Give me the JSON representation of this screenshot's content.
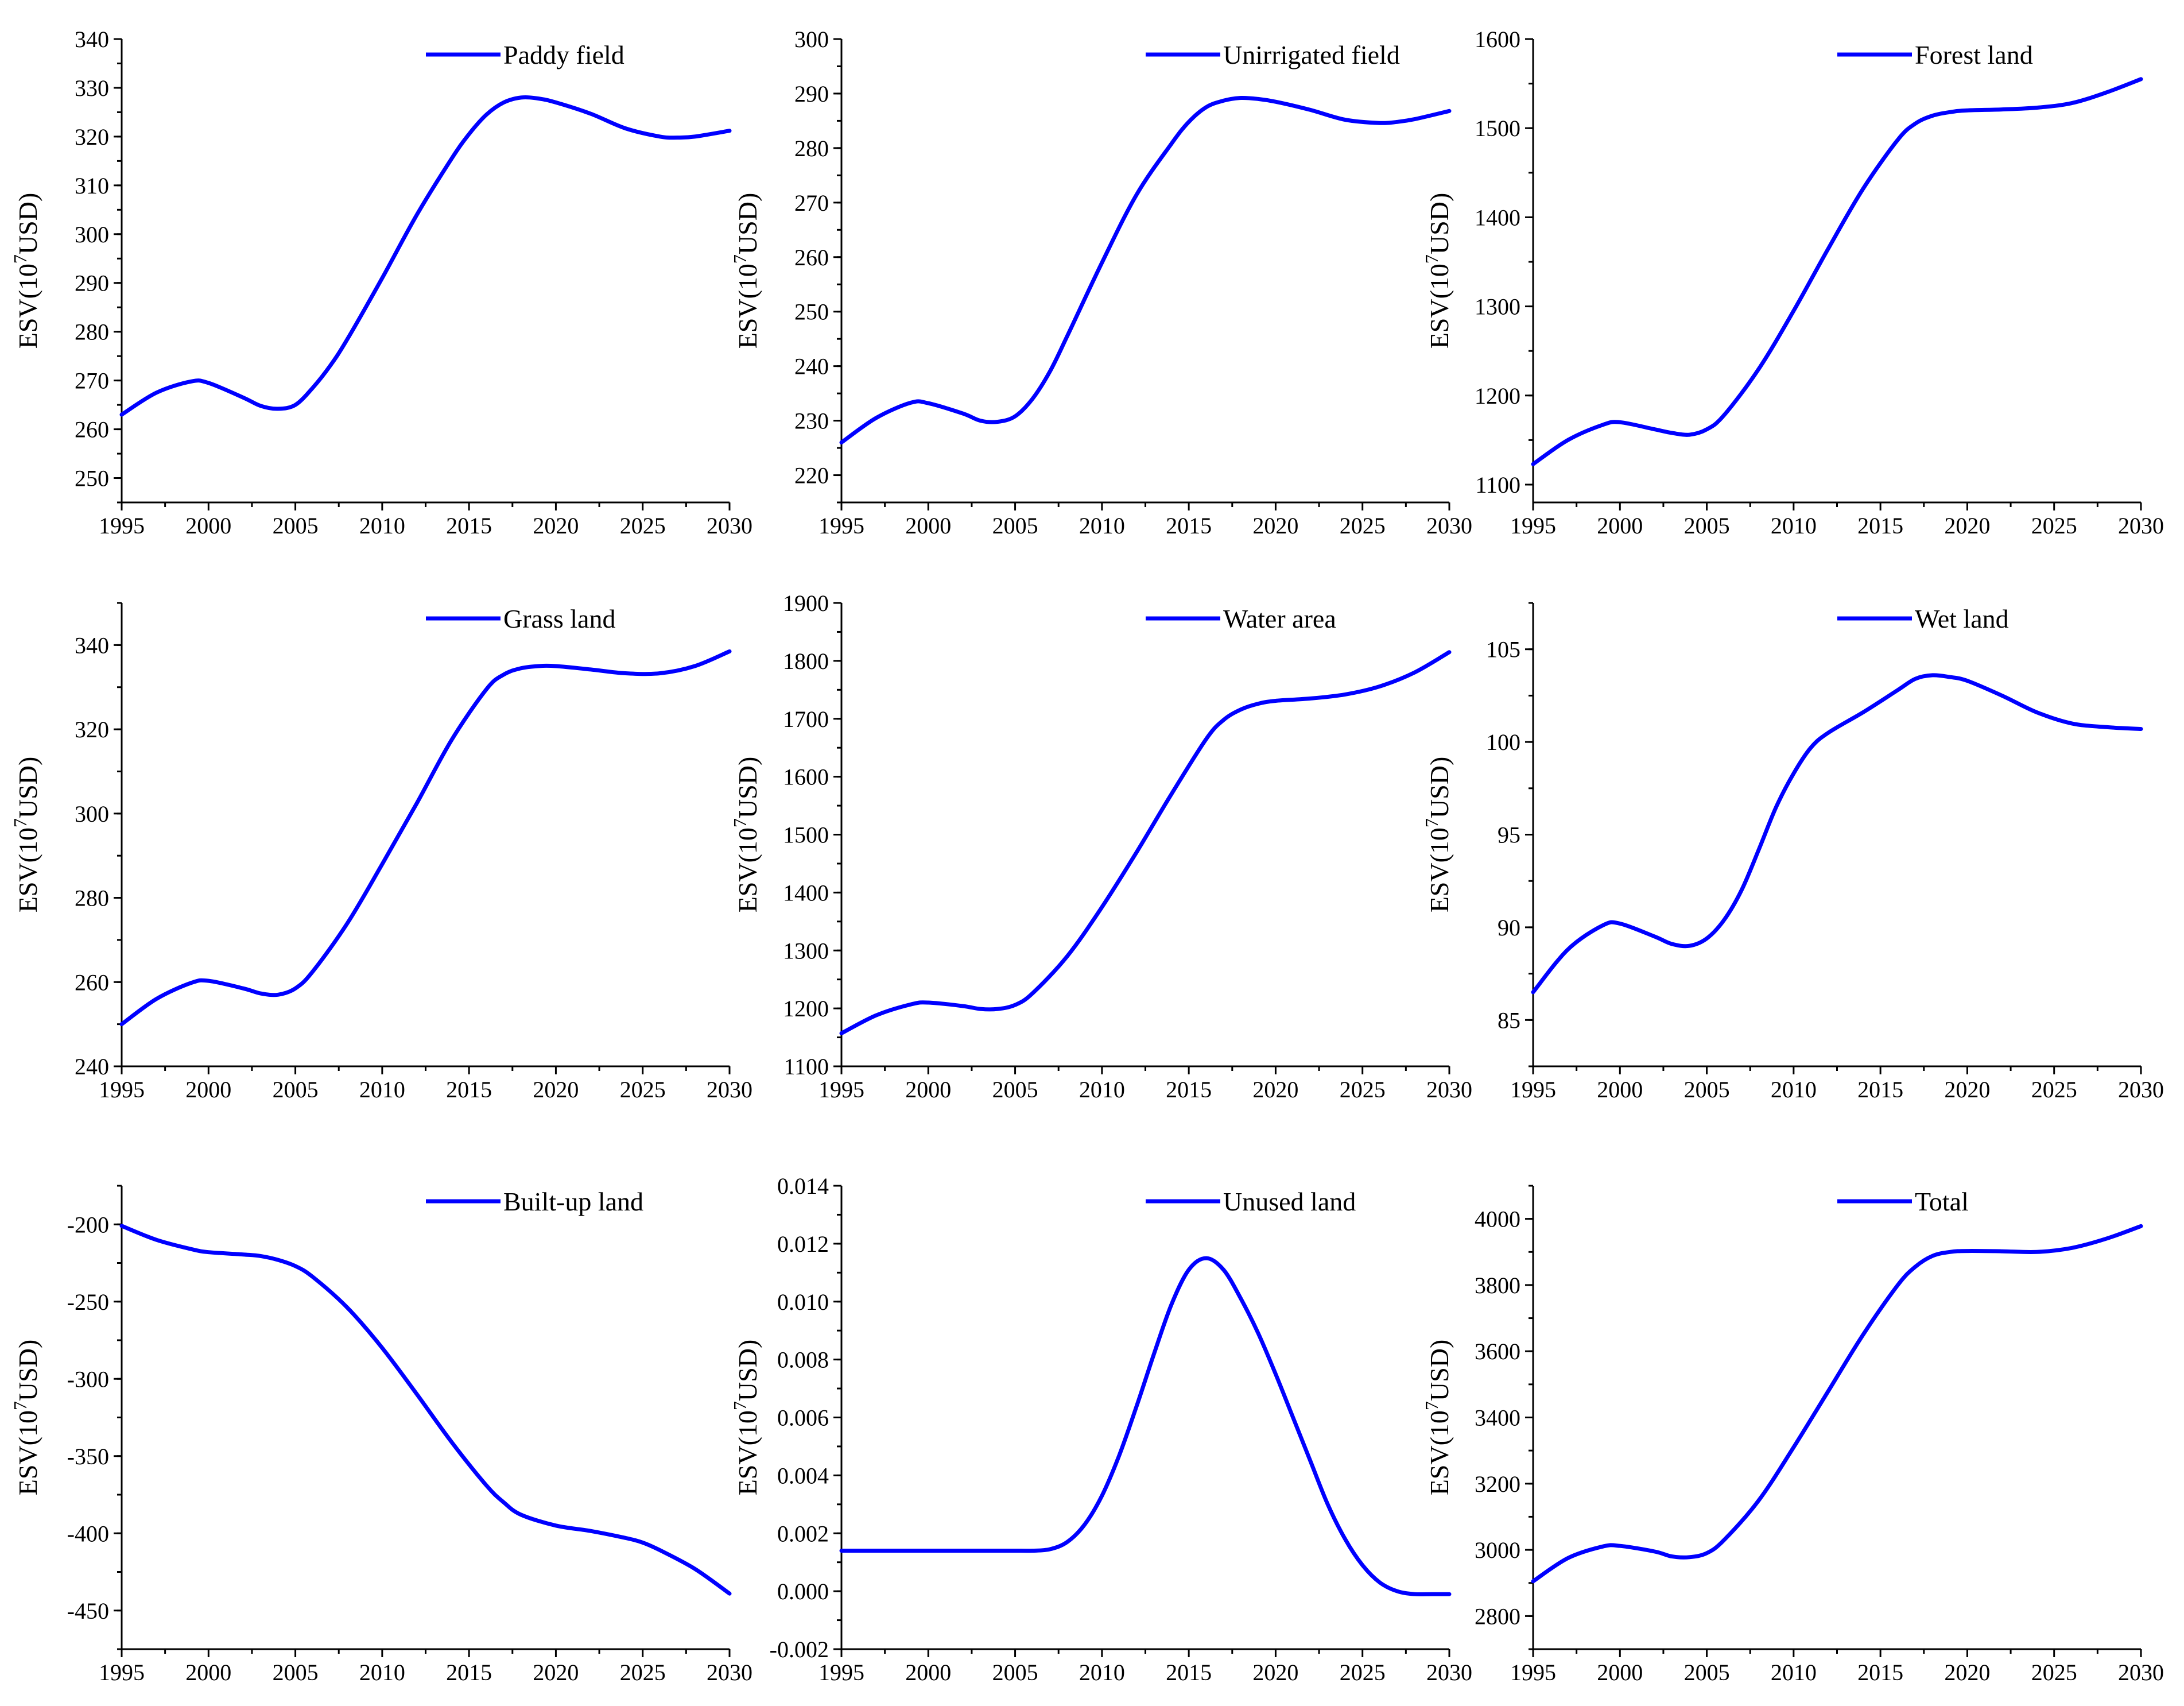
{
  "figure": {
    "line_color": "#0000ff",
    "axis_color": "#000000",
    "ylabel_base": "ESV(10",
    "ylabel_sup": "7",
    "ylabel_tail": "USD)"
  },
  "chart_data": [
    {
      "type": "line",
      "title": "",
      "legend": "Paddy field",
      "legend_position": "top-right",
      "xlabel": "",
      "ylabel": "ESV(10^7USD)",
      "xlim": [
        1995,
        2030
      ],
      "ylim": [
        245,
        340
      ],
      "xticks": [
        "1995",
        "2000",
        "2005",
        "2010",
        "2015",
        "2020",
        "2025",
        "2030"
      ],
      "yticks": [
        "250",
        "260",
        "270",
        "280",
        "290",
        "300",
        "310",
        "320",
        "330",
        "340"
      ],
      "series": [
        {
          "name": "Paddy field",
          "x": [
            1995,
            1997,
            1999,
            2000,
            2002,
            2003,
            2004,
            2005,
            2006,
            2007,
            2008,
            2010,
            2012,
            2014,
            2015,
            2016,
            2017,
            2018,
            2019,
            2020,
            2022,
            2024,
            2026,
            2027,
            2028,
            2030
          ],
          "y": [
            263,
            267.5,
            269.8,
            269.5,
            266.5,
            264.8,
            264.2,
            265,
            268.5,
            273,
            278.5,
            291,
            304,
            315.5,
            320.5,
            324.5,
            327,
            328,
            327.8,
            327,
            324.7,
            321.7,
            320,
            319.8,
            320,
            321.2
          ]
        }
      ]
    },
    {
      "type": "line",
      "title": "",
      "legend": "Unirrigated field",
      "legend_position": "top-right",
      "xlabel": "",
      "ylabel": "ESV(10^7USD)",
      "xlim": [
        1995,
        2030
      ],
      "ylim": [
        215,
        300
      ],
      "xticks": [
        "1995",
        "2000",
        "2005",
        "2010",
        "2015",
        "2020",
        "2025",
        "2030"
      ],
      "yticks": [
        "220",
        "230",
        "240",
        "250",
        "260",
        "270",
        "280",
        "290",
        "300"
      ],
      "series": [
        {
          "name": "Unirrigated field",
          "x": [
            1995,
            1997,
            1999,
            2000,
            2002,
            2003,
            2004,
            2005,
            2006,
            2007,
            2008,
            2010,
            2012,
            2014,
            2015,
            2016,
            2017,
            2018,
            2019,
            2020,
            2022,
            2024,
            2026,
            2027,
            2028,
            2030
          ],
          "y": [
            226,
            230.5,
            233.3,
            233.2,
            231.3,
            230,
            229.8,
            230.8,
            234,
            239,
            245.5,
            259,
            271.5,
            280.8,
            284.8,
            287.5,
            288.7,
            289.2,
            289,
            288.5,
            287,
            285.2,
            284.6,
            284.8,
            285.3,
            286.8
          ]
        }
      ]
    },
    {
      "type": "line",
      "title": "",
      "legend": "Forest land",
      "legend_position": "top-right",
      "xlabel": "",
      "ylabel": "ESV(10^7USD)",
      "xlim": [
        1995,
        2030
      ],
      "ylim": [
        1080,
        1600
      ],
      "xticks": [
        "1995",
        "2000",
        "2005",
        "2010",
        "2015",
        "2020",
        "2025",
        "2030"
      ],
      "yticks": [
        "1100",
        "1200",
        "1300",
        "1400",
        "1500",
        "1600"
      ],
      "series": [
        {
          "name": "Forest land",
          "x": [
            1995,
            1997,
            1999,
            2000,
            2002,
            2003,
            2004,
            2005,
            2006,
            2008,
            2010,
            2012,
            2014,
            2016,
            2017,
            2018,
            2019,
            2020,
            2022,
            2024,
            2026,
            2028,
            2030
          ],
          "y": [
            1123,
            1150,
            1167,
            1170,
            1162,
            1158,
            1156,
            1162,
            1178,
            1230,
            1295,
            1365,
            1432,
            1487,
            1505,
            1514,
            1518,
            1520,
            1521,
            1523,
            1528,
            1540,
            1555
          ]
        }
      ]
    },
    {
      "type": "line",
      "title": "",
      "legend": "Grass land",
      "legend_position": "top-right",
      "xlabel": "",
      "ylabel": "ESV(10^7USD)",
      "xlim": [
        1995,
        2030
      ],
      "ylim": [
        240,
        350
      ],
      "xticks": [
        "1995",
        "2000",
        "2005",
        "2010",
        "2015",
        "2020",
        "2025",
        "2030"
      ],
      "yticks": [
        "240",
        "260",
        "280",
        "300",
        "320",
        "340"
      ],
      "series": [
        {
          "name": "Grass land",
          "x": [
            1995,
            1997,
            1999,
            2000,
            2002,
            2003,
            2004,
            2005,
            2006,
            2008,
            2010,
            2012,
            2014,
            2016,
            2017,
            2018,
            2019,
            2020,
            2022,
            2024,
            2026,
            2028,
            2030
          ],
          "y": [
            250,
            256,
            259.8,
            260.3,
            258.5,
            257.3,
            257,
            258.5,
            262.5,
            274,
            288,
            302.5,
            317.5,
            329.5,
            333,
            334.5,
            335,
            335,
            334.2,
            333.3,
            333.3,
            335,
            338.5
          ]
        }
      ]
    },
    {
      "type": "line",
      "title": "",
      "legend": "Water area",
      "legend_position": "top-right",
      "xlabel": "",
      "ylabel": "ESV(10^7USD)",
      "xlim": [
        1995,
        2030
      ],
      "ylim": [
        1100,
        1900
      ],
      "xticks": [
        "1995",
        "2000",
        "2005",
        "2010",
        "2015",
        "2020",
        "2025",
        "2030"
      ],
      "yticks": [
        "1100",
        "1200",
        "1300",
        "1400",
        "1500",
        "1600",
        "1700",
        "1800",
        "1900"
      ],
      "series": [
        {
          "name": "Water area",
          "x": [
            1995,
            1997,
            1999,
            2000,
            2002,
            2003,
            2004,
            2005,
            2006,
            2008,
            2010,
            2012,
            2014,
            2016,
            2017,
            2018,
            2019,
            2020,
            2022,
            2024,
            2026,
            2028,
            2030
          ],
          "y": [
            1157,
            1188,
            1207,
            1210,
            1204,
            1199,
            1199,
            1206,
            1226,
            1290,
            1375,
            1470,
            1570,
            1665,
            1698,
            1716,
            1726,
            1731,
            1735,
            1742,
            1756,
            1780,
            1815
          ]
        }
      ]
    },
    {
      "type": "line",
      "title": "",
      "legend": "Wet land",
      "legend_position": "top-right",
      "xlabel": "",
      "ylabel": "ESV(10^7USD)",
      "xlim": [
        1995,
        2030
      ],
      "ylim": [
        82.5,
        107.5
      ],
      "xticks": [
        "1995",
        "2000",
        "2005",
        "2010",
        "2015",
        "2020",
        "2025",
        "2030"
      ],
      "yticks": [
        "85",
        "90",
        "95",
        "100",
        "105"
      ],
      "series": [
        {
          "name": "Wet land",
          "x": [
            1995,
            1997,
            1999,
            2000,
            2002,
            2003,
            2004,
            2005,
            2006,
            2007,
            2008,
            2009,
            2010,
            2011,
            2012,
            2014,
            2016,
            2017,
            2018,
            2019,
            2020,
            2022,
            2024,
            2026,
            2028,
            2030
          ],
          "y": [
            86.5,
            88.8,
            90.1,
            90.2,
            89.5,
            89.1,
            89,
            89.4,
            90.4,
            92,
            94.2,
            96.5,
            98.3,
            99.7,
            100.5,
            101.6,
            102.8,
            103.4,
            103.6,
            103.5,
            103.3,
            102.5,
            101.6,
            101,
            100.8,
            100.7
          ]
        }
      ]
    },
    {
      "type": "line",
      "title": "",
      "legend": "Built-up land",
      "legend_position": "top-right",
      "xlabel": "",
      "ylabel": "ESV(10^7USD)",
      "xlim": [
        1995,
        2030
      ],
      "ylim": [
        -475,
        -175
      ],
      "xticks": [
        "1995",
        "2000",
        "2005",
        "2010",
        "2015",
        "2020",
        "2025",
        "2030"
      ],
      "yticks": [
        "-200",
        "-250",
        "-300",
        "-350",
        "-400",
        "-450"
      ],
      "series": [
        {
          "name": "Built-up land",
          "x": [
            1995,
            1997,
            1999,
            2000,
            2002,
            2003,
            2004,
            2005,
            2006,
            2008,
            2010,
            2012,
            2014,
            2016,
            2017,
            2018,
            2020,
            2022,
            2024,
            2025,
            2026,
            2028,
            2030
          ],
          "y": [
            -201,
            -210,
            -216,
            -218,
            -219.5,
            -220.5,
            -223,
            -227,
            -234,
            -254,
            -280,
            -310,
            -341,
            -369,
            -380,
            -388,
            -395,
            -398.5,
            -403,
            -406,
            -411,
            -423,
            -439
          ]
        }
      ]
    },
    {
      "type": "line",
      "title": "",
      "legend": "Unused land",
      "legend_position": "top-right",
      "xlabel": "",
      "ylabel": "ESV(10^7USD)",
      "xlim": [
        1995,
        2030
      ],
      "ylim": [
        -0.002,
        0.014
      ],
      "xticks": [
        "1995",
        "2000",
        "2005",
        "2010",
        "2015",
        "2020",
        "2025",
        "2030"
      ],
      "yticks": [
        "-0.002",
        "0.000",
        "0.002",
        "0.004",
        "0.006",
        "0.008",
        "0.010",
        "0.012",
        "0.014"
      ],
      "series": [
        {
          "name": "Unused land",
          "x": [
            1995,
            2000,
            2005,
            2006,
            2007,
            2008,
            2009,
            2010,
            2011,
            2012,
            2013,
            2014,
            2015,
            2016,
            2017,
            2018,
            2019,
            2020,
            2021,
            2022,
            2023,
            2024,
            2025,
            2026,
            2027,
            2028,
            2029,
            2030
          ],
          "y": [
            0.0014,
            0.0014,
            0.0014,
            0.0014,
            0.00145,
            0.0017,
            0.0023,
            0.0033,
            0.0047,
            0.0064,
            0.0082,
            0.0099,
            0.0111,
            0.0115,
            0.0111,
            0.0101,
            0.0089,
            0.0075,
            0.006,
            0.0045,
            0.003,
            0.0018,
            0.0009,
            0.0003,
            0,
            -0.0001,
            -0.0001,
            -0.0001
          ]
        }
      ]
    },
    {
      "type": "line",
      "title": "",
      "legend": "Total",
      "legend_position": "top-right",
      "xlabel": "",
      "ylabel": "ESV(10^7USD)",
      "xlim": [
        1995,
        2030
      ],
      "ylim": [
        2700,
        4100
      ],
      "xticks": [
        "1995",
        "2000",
        "2005",
        "2010",
        "2015",
        "2020",
        "2025",
        "2030"
      ],
      "yticks": [
        "2800",
        "3000",
        "3200",
        "3400",
        "3600",
        "3800",
        "4000"
      ],
      "series": [
        {
          "name": "Total",
          "x": [
            1995,
            1997,
            1999,
            2000,
            2002,
            2003,
            2004,
            2005,
            2006,
            2008,
            2010,
            2012,
            2014,
            2016,
            2017,
            2018,
            2019,
            2020,
            2022,
            2024,
            2026,
            2028,
            2030
          ],
          "y": [
            2905,
            2975,
            3010,
            3012,
            2995,
            2980,
            2978,
            2990,
            3030,
            3150,
            3310,
            3480,
            3650,
            3800,
            3855,
            3888,
            3900,
            3903,
            3902,
            3900,
            3912,
            3940,
            3978
          ]
        }
      ]
    }
  ]
}
